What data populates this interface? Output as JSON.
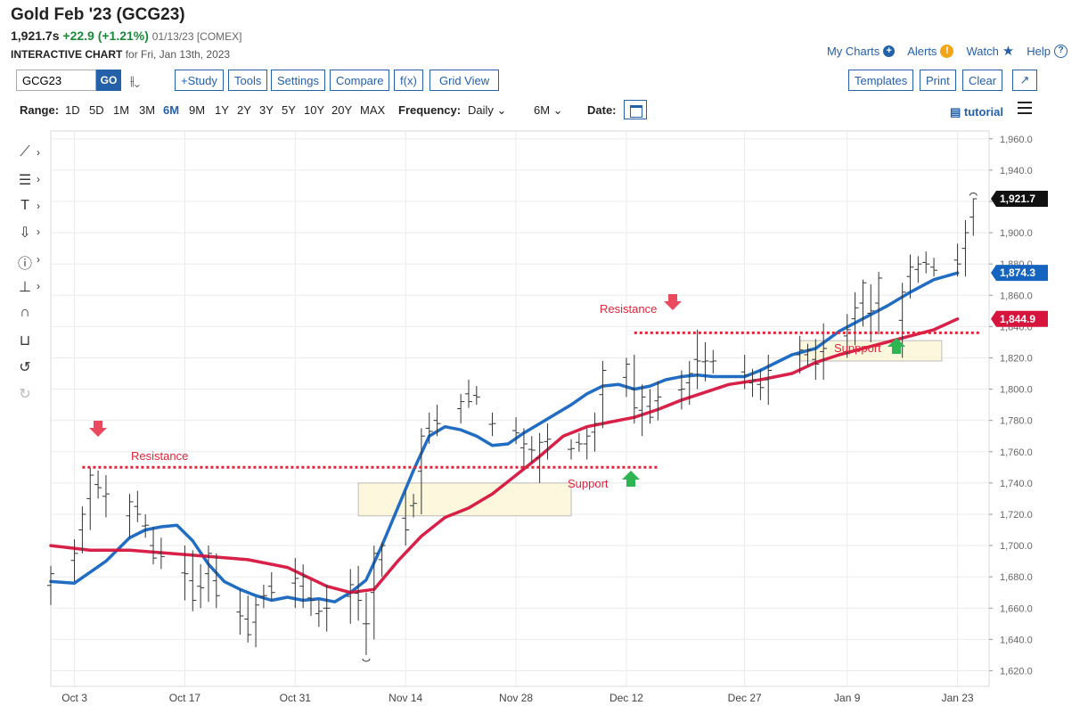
{
  "header": {
    "title": "Gold Feb '23 (GCG23)",
    "last": "1,921.7s",
    "change": "+22.9 (+1.21%)",
    "meta": "01/13/23 [COMEX]",
    "interactive_label": "INTERACTIVE CHART",
    "interactive_date": "for Fri, Jan 13th, 2023"
  },
  "links": {
    "my_charts": "My Charts",
    "alerts": "Alerts",
    "watch": "Watch",
    "help": "Help"
  },
  "toolbar": {
    "symbol": "GCG23",
    "go": "GO",
    "study": "+Study",
    "tools": "Tools",
    "settings": "Settings",
    "compare": "Compare",
    "fx": "f(x)",
    "grid_view": "Grid View",
    "templates": "Templates",
    "print": "Print",
    "clear": "Clear"
  },
  "range": {
    "label": "Range:",
    "options": [
      "1D",
      "5D",
      "1M",
      "3M",
      "6M",
      "9M",
      "1Y",
      "2Y",
      "3Y",
      "5Y",
      "10Y",
      "20Y",
      "MAX"
    ],
    "active": "6M",
    "frequency_label": "Frequency:",
    "frequency": "Daily",
    "period": "6M",
    "date_label": "Date:",
    "tutorial": "tutorial"
  },
  "tools_icons": [
    "line-draw-icon",
    "fibonacci-icon",
    "text-icon",
    "arrow-marker-icon",
    "question-icon",
    "measure-icon",
    "magnet-icon",
    "lock-icon",
    "undo-icon",
    "redo-icon"
  ],
  "chart_data": {
    "type": "ohlc-bar",
    "title": "",
    "ylim": [
      1610,
      1965
    ],
    "yticks": [
      1620,
      1640,
      1660,
      1680,
      1700,
      1720,
      1740,
      1760,
      1780,
      1800,
      1820,
      1840,
      1860,
      1880,
      1900,
      1920,
      1940,
      1960
    ],
    "ytick_labels": [
      "1,620.0",
      "1,640.0",
      "1,660.0",
      "1,680.0",
      "1,700.0",
      "1,720.0",
      "1,740.0",
      "1,760.0",
      "1,780.0",
      "1,800.0",
      "1,820.0",
      "1,840.0",
      "1,860.0",
      "1,880.0",
      "1,900.0",
      "1,920.0",
      "1,940.0",
      "1,960.0"
    ],
    "xlim": [
      "2022-09-30",
      "2023-01-27"
    ],
    "xticks": [
      "2022-10-03",
      "2022-10-17",
      "2022-10-31",
      "2022-11-14",
      "2022-11-28",
      "2022-12-12",
      "2022-12-27",
      "2023-01-09",
      "2023-01-23"
    ],
    "xtick_labels": [
      "Oct 3",
      "Oct 17",
      "Oct 31",
      "Nov 14",
      "Nov 28",
      "Dec 12",
      "Dec 27",
      "Jan 9",
      "Jan 23"
    ],
    "grid": true,
    "bars": [
      {
        "d": "2022-09-30",
        "h": 1687,
        "l": 1662,
        "c": 1682
      },
      {
        "d": "2022-10-03",
        "h": 1704,
        "l": 1677,
        "c": 1695
      },
      {
        "d": "2022-10-04",
        "h": 1725,
        "l": 1695,
        "c": 1720
      },
      {
        "d": "2022-10-05",
        "h": 1750,
        "l": 1710,
        "c": 1745
      },
      {
        "d": "2022-10-06",
        "h": 1748,
        "l": 1730,
        "c": 1737
      },
      {
        "d": "2022-10-07",
        "h": 1745,
        "l": 1718,
        "c": 1733
      },
      {
        "d": "2022-10-10",
        "h": 1733,
        "l": 1705,
        "c": 1728
      },
      {
        "d": "2022-10-11",
        "h": 1735,
        "l": 1715,
        "c": 1720
      },
      {
        "d": "2022-10-12",
        "h": 1720,
        "l": 1705,
        "c": 1713
      },
      {
        "d": "2022-10-13",
        "h": 1712,
        "l": 1688,
        "c": 1692
      },
      {
        "d": "2022-10-14",
        "h": 1705,
        "l": 1685,
        "c": 1693
      },
      {
        "d": "2022-10-17",
        "h": 1700,
        "l": 1665,
        "c": 1682
      },
      {
        "d": "2022-10-18",
        "h": 1697,
        "l": 1658,
        "c": 1665
      },
      {
        "d": "2022-10-19",
        "h": 1688,
        "l": 1660,
        "c": 1673
      },
      {
        "d": "2022-10-20",
        "h": 1700,
        "l": 1664,
        "c": 1695
      },
      {
        "d": "2022-10-21",
        "h": 1695,
        "l": 1660,
        "c": 1668
      },
      {
        "d": "2022-10-24",
        "h": 1672,
        "l": 1643,
        "c": 1655
      },
      {
        "d": "2022-10-25",
        "h": 1668,
        "l": 1638,
        "c": 1643
      },
      {
        "d": "2022-10-26",
        "h": 1667,
        "l": 1635,
        "c": 1662
      },
      {
        "d": "2022-10-27",
        "h": 1675,
        "l": 1660,
        "c": 1668
      },
      {
        "d": "2022-10-28",
        "h": 1683,
        "l": 1665,
        "c": 1670
      },
      {
        "d": "2022-10-31",
        "h": 1692,
        "l": 1660,
        "c": 1679
      },
      {
        "d": "2022-11-01",
        "h": 1688,
        "l": 1660,
        "c": 1680
      },
      {
        "d": "2022-11-02",
        "h": 1678,
        "l": 1655,
        "c": 1665
      },
      {
        "d": "2022-11-03",
        "h": 1665,
        "l": 1648,
        "c": 1658
      },
      {
        "d": "2022-11-04",
        "h": 1675,
        "l": 1645,
        "c": 1660
      },
      {
        "d": "2022-11-07",
        "h": 1685,
        "l": 1650,
        "c": 1675
      },
      {
        "d": "2022-11-08",
        "h": 1687,
        "l": 1652,
        "c": 1665
      },
      {
        "d": "2022-11-09",
        "h": 1670,
        "l": 1630,
        "c": 1650
      },
      {
        "d": "2022-11-10",
        "h": 1700,
        "l": 1640,
        "c": 1695
      },
      {
        "d": "2022-11-11",
        "h": 1702,
        "l": 1680,
        "c": 1700
      },
      {
        "d": "2022-11-14",
        "h": 1735,
        "l": 1700,
        "c": 1710
      },
      {
        "d": "2022-11-15",
        "h": 1733,
        "l": 1718,
        "c": 1727
      },
      {
        "d": "2022-11-16",
        "h": 1775,
        "l": 1720,
        "c": 1770
      },
      {
        "d": "2022-11-17",
        "h": 1785,
        "l": 1765,
        "c": 1773
      },
      {
        "d": "2022-11-18",
        "h": 1790,
        "l": 1770,
        "c": 1778
      },
      {
        "d": "2022-11-21",
        "h": 1797,
        "l": 1778,
        "c": 1792
      },
      {
        "d": "2022-11-22",
        "h": 1806,
        "l": 1788,
        "c": 1792
      },
      {
        "d": "2022-11-23",
        "h": 1802,
        "l": 1790,
        "c": 1795
      },
      {
        "d": "2022-11-25",
        "h": 1785,
        "l": 1770,
        "c": 1778
      },
      {
        "d": "2022-11-28",
        "h": 1782,
        "l": 1765,
        "c": 1772
      },
      {
        "d": "2022-11-29",
        "h": 1775,
        "l": 1750,
        "c": 1765
      },
      {
        "d": "2022-11-30",
        "h": 1770,
        "l": 1753,
        "c": 1761
      },
      {
        "d": "2022-12-01",
        "h": 1772,
        "l": 1740,
        "c": 1766
      },
      {
        "d": "2022-12-02",
        "h": 1778,
        "l": 1755,
        "c": 1768
      },
      {
        "d": "2022-12-05",
        "h": 1768,
        "l": 1755,
        "c": 1762
      },
      {
        "d": "2022-12-06",
        "h": 1772,
        "l": 1760,
        "c": 1765
      },
      {
        "d": "2022-12-07",
        "h": 1775,
        "l": 1755,
        "c": 1770
      },
      {
        "d": "2022-12-08",
        "h": 1785,
        "l": 1760,
        "c": 1778
      },
      {
        "d": "2022-12-09",
        "h": 1818,
        "l": 1775,
        "c": 1812
      },
      {
        "d": "2022-12-12",
        "h": 1820,
        "l": 1795,
        "c": 1816
      },
      {
        "d": "2022-12-13",
        "h": 1822,
        "l": 1778,
        "c": 1788
      },
      {
        "d": "2022-12-14",
        "h": 1803,
        "l": 1770,
        "c": 1795
      },
      {
        "d": "2022-12-15",
        "h": 1800,
        "l": 1778,
        "c": 1782
      },
      {
        "d": "2022-12-16",
        "h": 1805,
        "l": 1780,
        "c": 1795
      },
      {
        "d": "2022-12-19",
        "h": 1812,
        "l": 1787,
        "c": 1800
      },
      {
        "d": "2022-12-20",
        "h": 1818,
        "l": 1790,
        "c": 1810
      },
      {
        "d": "2022-12-21",
        "h": 1838,
        "l": 1800,
        "c": 1818
      },
      {
        "d": "2022-12-22",
        "h": 1830,
        "l": 1805,
        "c": 1818
      },
      {
        "d": "2022-12-23",
        "h": 1825,
        "l": 1810,
        "c": 1818
      },
      {
        "d": "2022-12-27",
        "h": 1822,
        "l": 1800,
        "c": 1809
      },
      {
        "d": "2022-12-28",
        "h": 1813,
        "l": 1795,
        "c": 1806
      },
      {
        "d": "2022-12-29",
        "h": 1813,
        "l": 1793,
        "c": 1801
      },
      {
        "d": "2022-12-30",
        "h": 1822,
        "l": 1790,
        "c": 1812
      },
      {
        "d": "2023-01-03",
        "h": 1834,
        "l": 1810,
        "c": 1825
      },
      {
        "d": "2023-01-04",
        "h": 1829,
        "l": 1815,
        "c": 1825
      },
      {
        "d": "2023-01-05",
        "h": 1832,
        "l": 1806,
        "c": 1816
      },
      {
        "d": "2023-01-06",
        "h": 1842,
        "l": 1806,
        "c": 1826
      },
      {
        "d": "2023-01-09",
        "h": 1848,
        "l": 1820,
        "c": 1838
      },
      {
        "d": "2023-01-10",
        "h": 1862,
        "l": 1828,
        "c": 1852
      },
      {
        "d": "2023-01-11",
        "h": 1870,
        "l": 1840,
        "c": 1868
      },
      {
        "d": "2023-01-12",
        "h": 1867,
        "l": 1830,
        "c": 1850
      },
      {
        "d": "2023-01-13",
        "h": 1875,
        "l": 1835,
        "c": 1871
      },
      {
        "d": "2023-01-16",
        "h": 1868,
        "l": 1820,
        "c": 1862
      },
      {
        "d": "2023-01-17",
        "h": 1886,
        "l": 1858,
        "c": 1878
      },
      {
        "d": "2023-01-18",
        "h": 1885,
        "l": 1868,
        "c": 1880
      },
      {
        "d": "2023-01-19",
        "h": 1888,
        "l": 1874,
        "c": 1880
      },
      {
        "d": "2023-01-20",
        "h": 1884,
        "l": 1872,
        "c": 1876
      },
      {
        "d": "2023-01-23",
        "h": 1893,
        "l": 1872,
        "c": 1880
      },
      {
        "d": "2023-01-24",
        "h": 1908,
        "l": 1872,
        "c": 1900
      },
      {
        "d": "2023-01-25",
        "h": 1922,
        "l": 1898,
        "c": 1921.7
      }
    ],
    "series": [
      {
        "name": "",
        "color": "#1565c0",
        "points": [
          [
            "2022-09-30",
            1677
          ],
          [
            "2022-10-03",
            1676
          ],
          [
            "2022-10-05",
            1683
          ],
          [
            "2022-10-07",
            1690
          ],
          [
            "2022-10-10",
            1705
          ],
          [
            "2022-10-12",
            1710
          ],
          [
            "2022-10-14",
            1712
          ],
          [
            "2022-10-16",
            1713
          ],
          [
            "2022-10-18",
            1703
          ],
          [
            "2022-10-20",
            1688
          ],
          [
            "2022-10-22",
            1677
          ],
          [
            "2022-10-24",
            1672
          ],
          [
            "2022-10-26",
            1668
          ],
          [
            "2022-10-28",
            1665
          ],
          [
            "2022-10-30",
            1667
          ],
          [
            "2022-11-01",
            1665
          ],
          [
            "2022-11-03",
            1666
          ],
          [
            "2022-11-05",
            1664
          ],
          [
            "2022-11-07",
            1670
          ],
          [
            "2022-11-09",
            1678
          ],
          [
            "2022-11-11",
            1700
          ],
          [
            "2022-11-13",
            1724
          ],
          [
            "2022-11-15",
            1748
          ],
          [
            "2022-11-17",
            1770
          ],
          [
            "2022-11-19",
            1776
          ],
          [
            "2022-11-21",
            1774
          ],
          [
            "2022-11-23",
            1770
          ],
          [
            "2022-11-25",
            1764
          ],
          [
            "2022-11-27",
            1765
          ],
          [
            "2022-11-29",
            1772
          ],
          [
            "2022-12-01",
            1778
          ],
          [
            "2022-12-03",
            1784
          ],
          [
            "2022-12-05",
            1790
          ],
          [
            "2022-12-07",
            1797
          ],
          [
            "2022-12-09",
            1802
          ],
          [
            "2022-12-11",
            1803
          ],
          [
            "2022-12-13",
            1800
          ],
          [
            "2022-12-15",
            1802
          ],
          [
            "2022-12-17",
            1806
          ],
          [
            "2022-12-19",
            1808
          ],
          [
            "2022-12-21",
            1809
          ],
          [
            "2022-12-23",
            1808
          ],
          [
            "2022-12-27",
            1808
          ],
          [
            "2022-12-29",
            1812
          ],
          [
            "2023-01-02",
            1822
          ],
          [
            "2023-01-05",
            1826
          ],
          [
            "2023-01-08",
            1837
          ],
          [
            "2023-01-11",
            1845
          ],
          [
            "2023-01-14",
            1853
          ],
          [
            "2023-01-17",
            1862
          ],
          [
            "2023-01-20",
            1870
          ],
          [
            "2023-01-23",
            1874.3
          ]
        ]
      },
      {
        "name": "",
        "color": "#d6143e",
        "points": [
          [
            "2022-09-30",
            1700
          ],
          [
            "2022-10-05",
            1697
          ],
          [
            "2022-10-10",
            1697
          ],
          [
            "2022-10-15",
            1695
          ],
          [
            "2022-10-20",
            1693
          ],
          [
            "2022-10-25",
            1691
          ],
          [
            "2022-10-30",
            1686
          ],
          [
            "2022-11-04",
            1674
          ],
          [
            "2022-11-07",
            1670
          ],
          [
            "2022-11-10",
            1672
          ],
          [
            "2022-11-13",
            1690
          ],
          [
            "2022-11-16",
            1706
          ],
          [
            "2022-11-19",
            1718
          ],
          [
            "2022-11-22",
            1724
          ],
          [
            "2022-11-25",
            1733
          ],
          [
            "2022-11-28",
            1745
          ],
          [
            "2022-12-01",
            1757
          ],
          [
            "2022-12-04",
            1770
          ],
          [
            "2022-12-07",
            1776
          ],
          [
            "2022-12-10",
            1779
          ],
          [
            "2022-12-13",
            1782
          ],
          [
            "2022-12-16",
            1787
          ],
          [
            "2022-12-19",
            1793
          ],
          [
            "2022-12-22",
            1798
          ],
          [
            "2022-12-25",
            1803
          ],
          [
            "2022-12-29",
            1806
          ],
          [
            "2023-01-02",
            1810
          ],
          [
            "2023-01-05",
            1817
          ],
          [
            "2023-01-08",
            1822
          ],
          [
            "2023-01-11",
            1826
          ],
          [
            "2023-01-14",
            1830
          ],
          [
            "2023-01-17",
            1834
          ],
          [
            "2023-01-20",
            1838
          ],
          [
            "2023-01-23",
            1844.9
          ]
        ]
      }
    ],
    "price_tags": [
      {
        "value": 1921.7,
        "label": "1,921.7",
        "color": "#111111"
      },
      {
        "value": 1874.3,
        "label": "1,874.3",
        "color": "#1565c0"
      },
      {
        "value": 1844.9,
        "label": "1,844.9",
        "color": "#d6143e"
      }
    ],
    "annotations": {
      "resistance_1": {
        "text": "Resistance",
        "value": 1750,
        "from": "2022-10-04",
        "to": "2022-12-16"
      },
      "support_1": {
        "text": "Support",
        "box": [
          "2022-11-08",
          "2022-12-05",
          1719,
          1740
        ]
      },
      "resistance_2": {
        "text": "Resistance",
        "value": 1836,
        "from": "2022-12-13",
        "to": "2023-01-26"
      },
      "support_2": {
        "text": "Suppport",
        "box": [
          "2023-01-03",
          "2023-01-21",
          1818,
          1831
        ]
      }
    }
  }
}
